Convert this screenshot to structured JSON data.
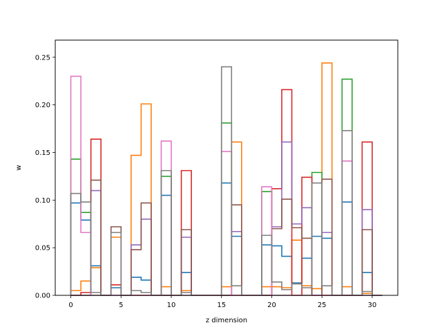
{
  "chart_data": {
    "type": "histogram-step",
    "xlabel": "z dimension",
    "ylabel": "w",
    "xlim": [
      -1.55,
      32.55
    ],
    "ylim": [
      0,
      0.268
    ],
    "x_ticks": [
      0,
      5,
      10,
      15,
      20,
      25,
      30
    ],
    "y_ticks": [
      0.0,
      0.05,
      0.1,
      0.15,
      0.2,
      0.25
    ],
    "y_tick_labels": [
      "0.00",
      "0.05",
      "0.10",
      "0.15",
      "0.20",
      "0.25"
    ],
    "bin_edges": [
      0,
      1,
      2,
      3,
      4,
      5,
      6,
      7,
      8,
      9,
      10,
      11,
      12,
      13,
      14,
      15,
      16,
      17,
      18,
      19,
      20,
      21,
      22,
      23,
      24,
      25,
      26,
      27,
      28,
      29,
      30,
      31
    ],
    "grid": false,
    "legend": "none",
    "series": [
      {
        "color": "#1f77b4",
        "values": [
          0.097,
          0.079,
          0.031,
          0,
          0.008,
          0,
          0.019,
          0.016,
          0,
          0.105,
          0,
          0.024,
          0,
          0,
          0,
          0.118,
          0.062,
          0,
          0,
          0.053,
          0.052,
          0.041,
          0.013,
          0.039,
          0.062,
          0.06,
          0,
          0.098,
          0,
          0.024,
          0
        ]
      },
      {
        "color": "#ff7f0e",
        "values": [
          0.005,
          0.015,
          0.029,
          0,
          0.061,
          0,
          0.147,
          0.201,
          0,
          0.009,
          0,
          0.005,
          0,
          0,
          0,
          0.009,
          0.161,
          0,
          0,
          0.009,
          0.009,
          0.008,
          0.058,
          0.01,
          0.007,
          0.244,
          0,
          0.009,
          0,
          0.002,
          0
        ]
      },
      {
        "color": "#2ca02c",
        "values": [
          0.143,
          0.087,
          0,
          0,
          0,
          0,
          0,
          0,
          0,
          0.125,
          0,
          0,
          0,
          0,
          0,
          0.181,
          0,
          0,
          0,
          0.109,
          0,
          0,
          0,
          0,
          0.129,
          0,
          0,
          0.227,
          0,
          0,
          0
        ]
      },
      {
        "color": "#d62728",
        "values": [
          0,
          0.003,
          0.164,
          0,
          0.011,
          0,
          0,
          0,
          0,
          0,
          0,
          0.131,
          0,
          0,
          0,
          0,
          0,
          0,
          0,
          0,
          0.112,
          0.216,
          0,
          0.124,
          0,
          0,
          0,
          0,
          0,
          0.161,
          0
        ]
      },
      {
        "color": "#9467bd",
        "values": [
          0,
          0,
          0.11,
          0,
          0,
          0,
          0.053,
          0.08,
          0,
          0,
          0,
          0.061,
          0,
          0,
          0,
          0,
          0.067,
          0,
          0,
          0,
          0.072,
          0.161,
          0.075,
          0.092,
          0,
          0.066,
          0,
          0,
          0,
          0.09,
          0
        ]
      },
      {
        "color": "#8c564b",
        "values": [
          0,
          0,
          0.121,
          0,
          0.072,
          0,
          0.048,
          0.097,
          0,
          0,
          0,
          0.069,
          0,
          0,
          0,
          0,
          0.095,
          0,
          0,
          0,
          0.07,
          0.101,
          0.071,
          0.06,
          0,
          0.122,
          0,
          0,
          0,
          0.069,
          0
        ]
      },
      {
        "color": "#e377c2",
        "values": [
          0.23,
          0.066,
          0,
          0,
          0,
          0,
          0,
          0,
          0,
          0.162,
          0,
          0,
          0,
          0,
          0,
          0.151,
          0,
          0,
          0,
          0.114,
          0,
          0,
          0,
          0,
          0,
          0,
          0,
          0.141,
          0,
          0,
          0
        ]
      },
      {
        "color": "#7f7f7f",
        "values": [
          0.107,
          0.098,
          0.003,
          0,
          0.066,
          0,
          0.005,
          0.003,
          0,
          0.131,
          0,
          0.003,
          0,
          0,
          0,
          0.24,
          0.01,
          0,
          0,
          0.063,
          0.014,
          0.006,
          0.012,
          0.008,
          0.118,
          0.01,
          0,
          0.173,
          0,
          0.004,
          0
        ]
      }
    ]
  }
}
